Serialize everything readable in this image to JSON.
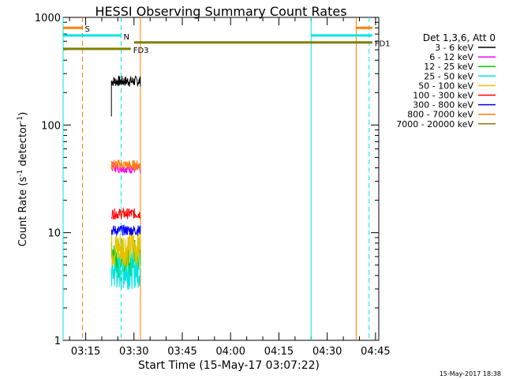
{
  "chart_data": {
    "type": "line",
    "title": "HESSI Observing Summary Count Rates",
    "xlabel": "Start Time (15-May-17 03:07:22)",
    "ylabel_main": "Count Rate (s",
    "ylabel_sup1": "-1",
    "ylabel_mid": " detector",
    "ylabel_sup2": "-1",
    "ylabel_end": ")",
    "xscale": "time",
    "yscale": "log",
    "xlim": [
      "03:08",
      "04:46"
    ],
    "ylim": [
      1,
      1000
    ],
    "xticks": [
      "03:15",
      "03:30",
      "03:45",
      "04:00",
      "04:15",
      "04:30",
      "04:45"
    ],
    "yticks": [
      {
        "value": 1,
        "label": "1"
      },
      {
        "value": 10,
        "label": "10"
      },
      {
        "value": 100,
        "label": "100"
      },
      {
        "value": 1000,
        "label": "1000"
      }
    ],
    "legend_title": "Det 1,3,6, Att 0",
    "legend_position": "right",
    "footer": "15-May-2017 18:38",
    "series": [
      {
        "name": "3 - 6 keV",
        "color": "#000000",
        "x": [
          "03:23:00",
          "03:32:00"
        ],
        "values": [
          255,
          255
        ],
        "start_value": 120
      },
      {
        "name": "6 - 12 keV",
        "color": "#ff00ff",
        "x": [
          "03:23:00",
          "03:32:00"
        ],
        "values": [
          41,
          39
        ]
      },
      {
        "name": "12 - 25 keV",
        "color": "#00cc00",
        "x": [
          "03:23:00",
          "03:32:00"
        ],
        "values": [
          5.5,
          6
        ]
      },
      {
        "name": "25 - 50 keV",
        "color": "#00e5e5",
        "x": [
          "03:23:00",
          "03:32:00"
        ],
        "values": [
          4.3,
          4.6
        ]
      },
      {
        "name": "50 - 100 keV",
        "color": "#e6c200",
        "x": [
          "03:23:00",
          "03:32:00"
        ],
        "values": [
          7,
          7.5
        ]
      },
      {
        "name": "100 - 300 keV",
        "color": "#ff0000",
        "x": [
          "03:23:00",
          "03:32:00"
        ],
        "values": [
          15,
          15
        ]
      },
      {
        "name": "300 - 800 keV",
        "color": "#0000ff",
        "x": [
          "03:23:00",
          "03:32:00"
        ],
        "values": [
          10.5,
          10.5
        ]
      },
      {
        "name": "800 - 7000 keV",
        "color": "#ff8000",
        "x": [
          "03:23:00",
          "03:32:00"
        ],
        "values": [
          43,
          42
        ]
      },
      {
        "name": "7000 - 20000 keV",
        "color": "#808000",
        "x": [],
        "values": []
      }
    ],
    "flags": [
      {
        "label": "S",
        "color": "#ff8000",
        "x_start": "03:08",
        "x_end": "03:14",
        "value": 800
      },
      {
        "label": "N",
        "color": "#00e5e5",
        "x_start": "03:08",
        "x_end": "03:26",
        "value": 680
      },
      {
        "label": "FD1",
        "color": "#808000",
        "x_start": "03:30",
        "x_end": "04:44",
        "value": 585
      },
      {
        "label": "FD3",
        "color": "#808000",
        "x_start": "03:08",
        "x_end": "03:29",
        "value": 510
      },
      {
        "label": "",
        "color": "#ff8000",
        "x_start": "04:39",
        "x_end": "04:44",
        "value": 800
      },
      {
        "label": "",
        "color": "#00e5e5",
        "x_start": "04:25",
        "x_end": "04:44",
        "value": 680
      }
    ],
    "vlines": [
      {
        "x": "03:08",
        "color": "#00e5e5",
        "style": "solid"
      },
      {
        "x": "03:14",
        "color": "#ff8000",
        "style": "dashed"
      },
      {
        "x": "03:26",
        "color": "#00e5e5",
        "style": "dashed"
      },
      {
        "x": "03:32",
        "color": "#ff8000",
        "style": "solid"
      },
      {
        "x": "04:25",
        "color": "#00e5e5",
        "style": "solid"
      },
      {
        "x": "04:39",
        "color": "#ff8000",
        "style": "solid"
      },
      {
        "x": "04:43",
        "color": "#00e5e5",
        "style": "dashed"
      }
    ]
  }
}
